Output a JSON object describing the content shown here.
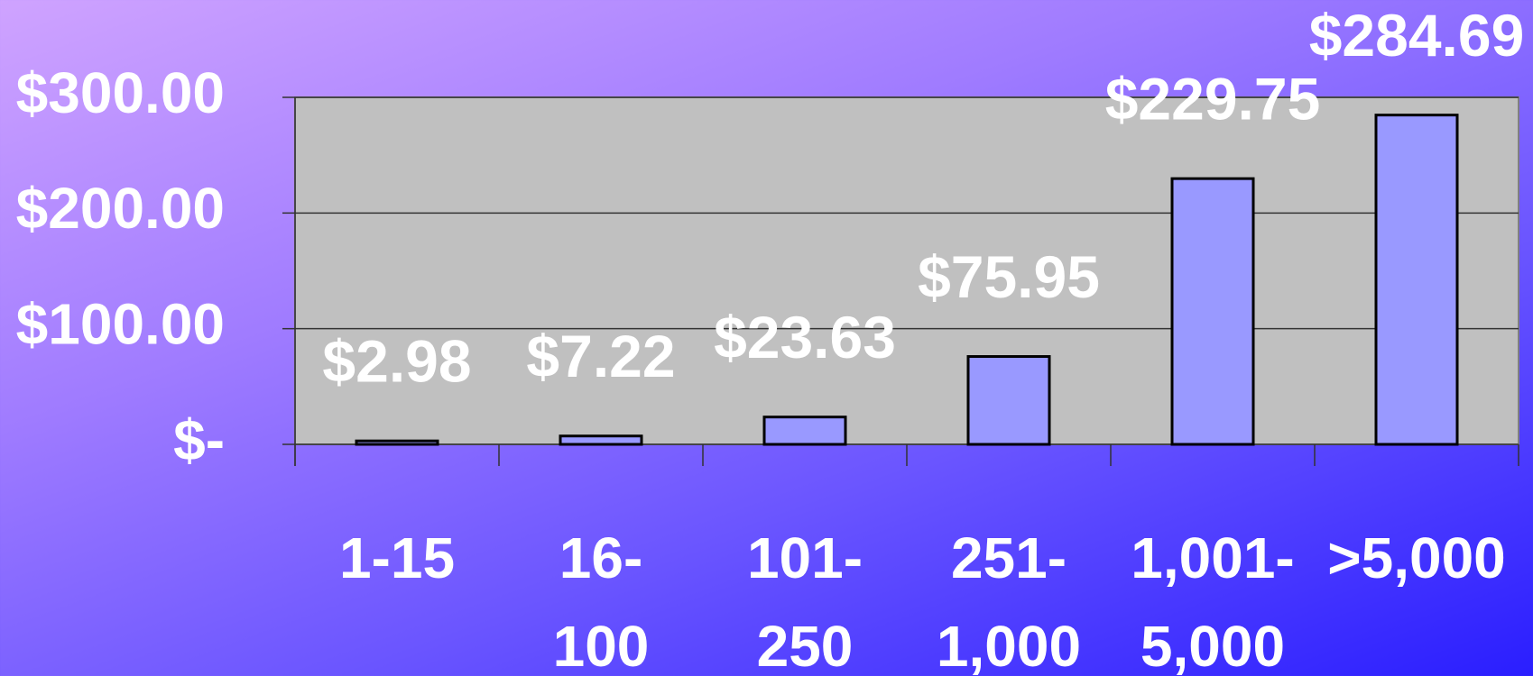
{
  "chart_data": {
    "type": "bar",
    "categories": [
      "1-15",
      "16-\n100",
      "101-\n250",
      "251-\n1,000",
      "1,001-\n5,000",
      ">5,000"
    ],
    "values": [
      2.98,
      7.22,
      23.63,
      75.95,
      229.75,
      284.69
    ],
    "value_labels": [
      "$2.98",
      "$7.22",
      "$23.63",
      "$75.95",
      "$229.75",
      "$284.69"
    ],
    "color": "#9999ff",
    "ylim": [
      0,
      300
    ],
    "yticks": [
      {
        "value": 0,
        "label": "$-"
      },
      {
        "value": 100,
        "label": "$100.00"
      },
      {
        "value": 200,
        "label": "$200.00"
      },
      {
        "value": 300,
        "label": "$300.00"
      }
    ],
    "grid": true
  }
}
